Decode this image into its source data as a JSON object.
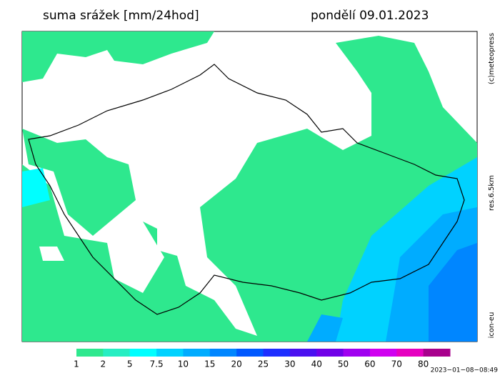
{
  "header": {
    "title": "suma srážek [mm/24hod]",
    "date": "pondělí 09.01.2023"
  },
  "side_labels": {
    "copyright": "(c)meteopress",
    "resolution": "res.6.5km",
    "model": "icon-eu"
  },
  "timestamp": "2023−01−08−08:49",
  "legend": {
    "items": [
      {
        "label": "1",
        "color": "#2ee88e"
      },
      {
        "label": "2",
        "color": "#26eec2"
      },
      {
        "label": "5",
        "color": "#00ffff"
      },
      {
        "label": "7.5",
        "color": "#00d2ff"
      },
      {
        "label": "10",
        "color": "#00acff"
      },
      {
        "label": "15",
        "color": "#0086ff"
      },
      {
        "label": "20",
        "color": "#0058ff"
      },
      {
        "label": "25",
        "color": "#1e2eff"
      },
      {
        "label": "30",
        "color": "#4a10f0"
      },
      {
        "label": "40",
        "color": "#7000e8"
      },
      {
        "label": "50",
        "color": "#a000f0"
      },
      {
        "label": "60",
        "color": "#d000f0"
      },
      {
        "label": "70",
        "color": "#e600c0"
      },
      {
        "label": "80",
        "color": "#a8008c"
      }
    ]
  }
}
